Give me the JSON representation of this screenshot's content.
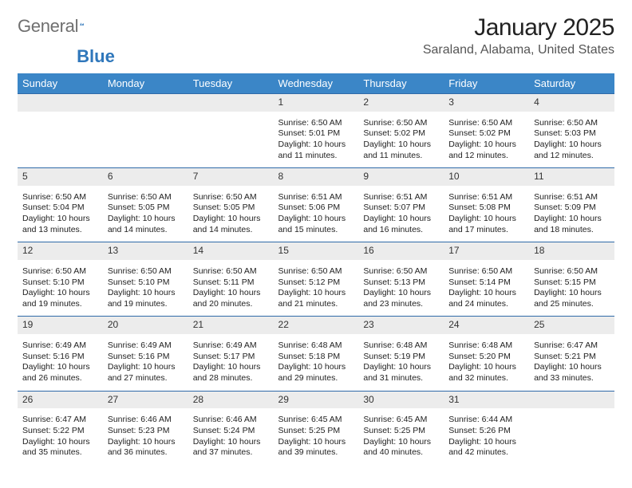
{
  "logo": {
    "text_general": "General",
    "text_blue": "Blue",
    "blue_color": "#2f77bb"
  },
  "header": {
    "month_title": "January 2025",
    "location": "Saraland, Alabama, United States"
  },
  "style": {
    "header_bg": "#3b86c7",
    "border_color": "#2f6aa8",
    "daynum_bg": "#ececec",
    "text_color": "#222222"
  },
  "weekdays": [
    "Sunday",
    "Monday",
    "Tuesday",
    "Wednesday",
    "Thursday",
    "Friday",
    "Saturday"
  ],
  "weeks": [
    [
      null,
      null,
      null,
      {
        "n": "1",
        "sr": "6:50 AM",
        "ss": "5:01 PM",
        "dl": "10 hours and 11 minutes."
      },
      {
        "n": "2",
        "sr": "6:50 AM",
        "ss": "5:02 PM",
        "dl": "10 hours and 11 minutes."
      },
      {
        "n": "3",
        "sr": "6:50 AM",
        "ss": "5:02 PM",
        "dl": "10 hours and 12 minutes."
      },
      {
        "n": "4",
        "sr": "6:50 AM",
        "ss": "5:03 PM",
        "dl": "10 hours and 12 minutes."
      }
    ],
    [
      {
        "n": "5",
        "sr": "6:50 AM",
        "ss": "5:04 PM",
        "dl": "10 hours and 13 minutes."
      },
      {
        "n": "6",
        "sr": "6:50 AM",
        "ss": "5:05 PM",
        "dl": "10 hours and 14 minutes."
      },
      {
        "n": "7",
        "sr": "6:50 AM",
        "ss": "5:05 PM",
        "dl": "10 hours and 14 minutes."
      },
      {
        "n": "8",
        "sr": "6:51 AM",
        "ss": "5:06 PM",
        "dl": "10 hours and 15 minutes."
      },
      {
        "n": "9",
        "sr": "6:51 AM",
        "ss": "5:07 PM",
        "dl": "10 hours and 16 minutes."
      },
      {
        "n": "10",
        "sr": "6:51 AM",
        "ss": "5:08 PM",
        "dl": "10 hours and 17 minutes."
      },
      {
        "n": "11",
        "sr": "6:51 AM",
        "ss": "5:09 PM",
        "dl": "10 hours and 18 minutes."
      }
    ],
    [
      {
        "n": "12",
        "sr": "6:50 AM",
        "ss": "5:10 PM",
        "dl": "10 hours and 19 minutes."
      },
      {
        "n": "13",
        "sr": "6:50 AM",
        "ss": "5:10 PM",
        "dl": "10 hours and 19 minutes."
      },
      {
        "n": "14",
        "sr": "6:50 AM",
        "ss": "5:11 PM",
        "dl": "10 hours and 20 minutes."
      },
      {
        "n": "15",
        "sr": "6:50 AM",
        "ss": "5:12 PM",
        "dl": "10 hours and 21 minutes."
      },
      {
        "n": "16",
        "sr": "6:50 AM",
        "ss": "5:13 PM",
        "dl": "10 hours and 23 minutes."
      },
      {
        "n": "17",
        "sr": "6:50 AM",
        "ss": "5:14 PM",
        "dl": "10 hours and 24 minutes."
      },
      {
        "n": "18",
        "sr": "6:50 AM",
        "ss": "5:15 PM",
        "dl": "10 hours and 25 minutes."
      }
    ],
    [
      {
        "n": "19",
        "sr": "6:49 AM",
        "ss": "5:16 PM",
        "dl": "10 hours and 26 minutes."
      },
      {
        "n": "20",
        "sr": "6:49 AM",
        "ss": "5:16 PM",
        "dl": "10 hours and 27 minutes."
      },
      {
        "n": "21",
        "sr": "6:49 AM",
        "ss": "5:17 PM",
        "dl": "10 hours and 28 minutes."
      },
      {
        "n": "22",
        "sr": "6:48 AM",
        "ss": "5:18 PM",
        "dl": "10 hours and 29 minutes."
      },
      {
        "n": "23",
        "sr": "6:48 AM",
        "ss": "5:19 PM",
        "dl": "10 hours and 31 minutes."
      },
      {
        "n": "24",
        "sr": "6:48 AM",
        "ss": "5:20 PM",
        "dl": "10 hours and 32 minutes."
      },
      {
        "n": "25",
        "sr": "6:47 AM",
        "ss": "5:21 PM",
        "dl": "10 hours and 33 minutes."
      }
    ],
    [
      {
        "n": "26",
        "sr": "6:47 AM",
        "ss": "5:22 PM",
        "dl": "10 hours and 35 minutes."
      },
      {
        "n": "27",
        "sr": "6:46 AM",
        "ss": "5:23 PM",
        "dl": "10 hours and 36 minutes."
      },
      {
        "n": "28",
        "sr": "6:46 AM",
        "ss": "5:24 PM",
        "dl": "10 hours and 37 minutes."
      },
      {
        "n": "29",
        "sr": "6:45 AM",
        "ss": "5:25 PM",
        "dl": "10 hours and 39 minutes."
      },
      {
        "n": "30",
        "sr": "6:45 AM",
        "ss": "5:25 PM",
        "dl": "10 hours and 40 minutes."
      },
      {
        "n": "31",
        "sr": "6:44 AM",
        "ss": "5:26 PM",
        "dl": "10 hours and 42 minutes."
      },
      null
    ]
  ],
  "labels": {
    "sunrise": "Sunrise:",
    "sunset": "Sunset:",
    "daylight": "Daylight:"
  }
}
